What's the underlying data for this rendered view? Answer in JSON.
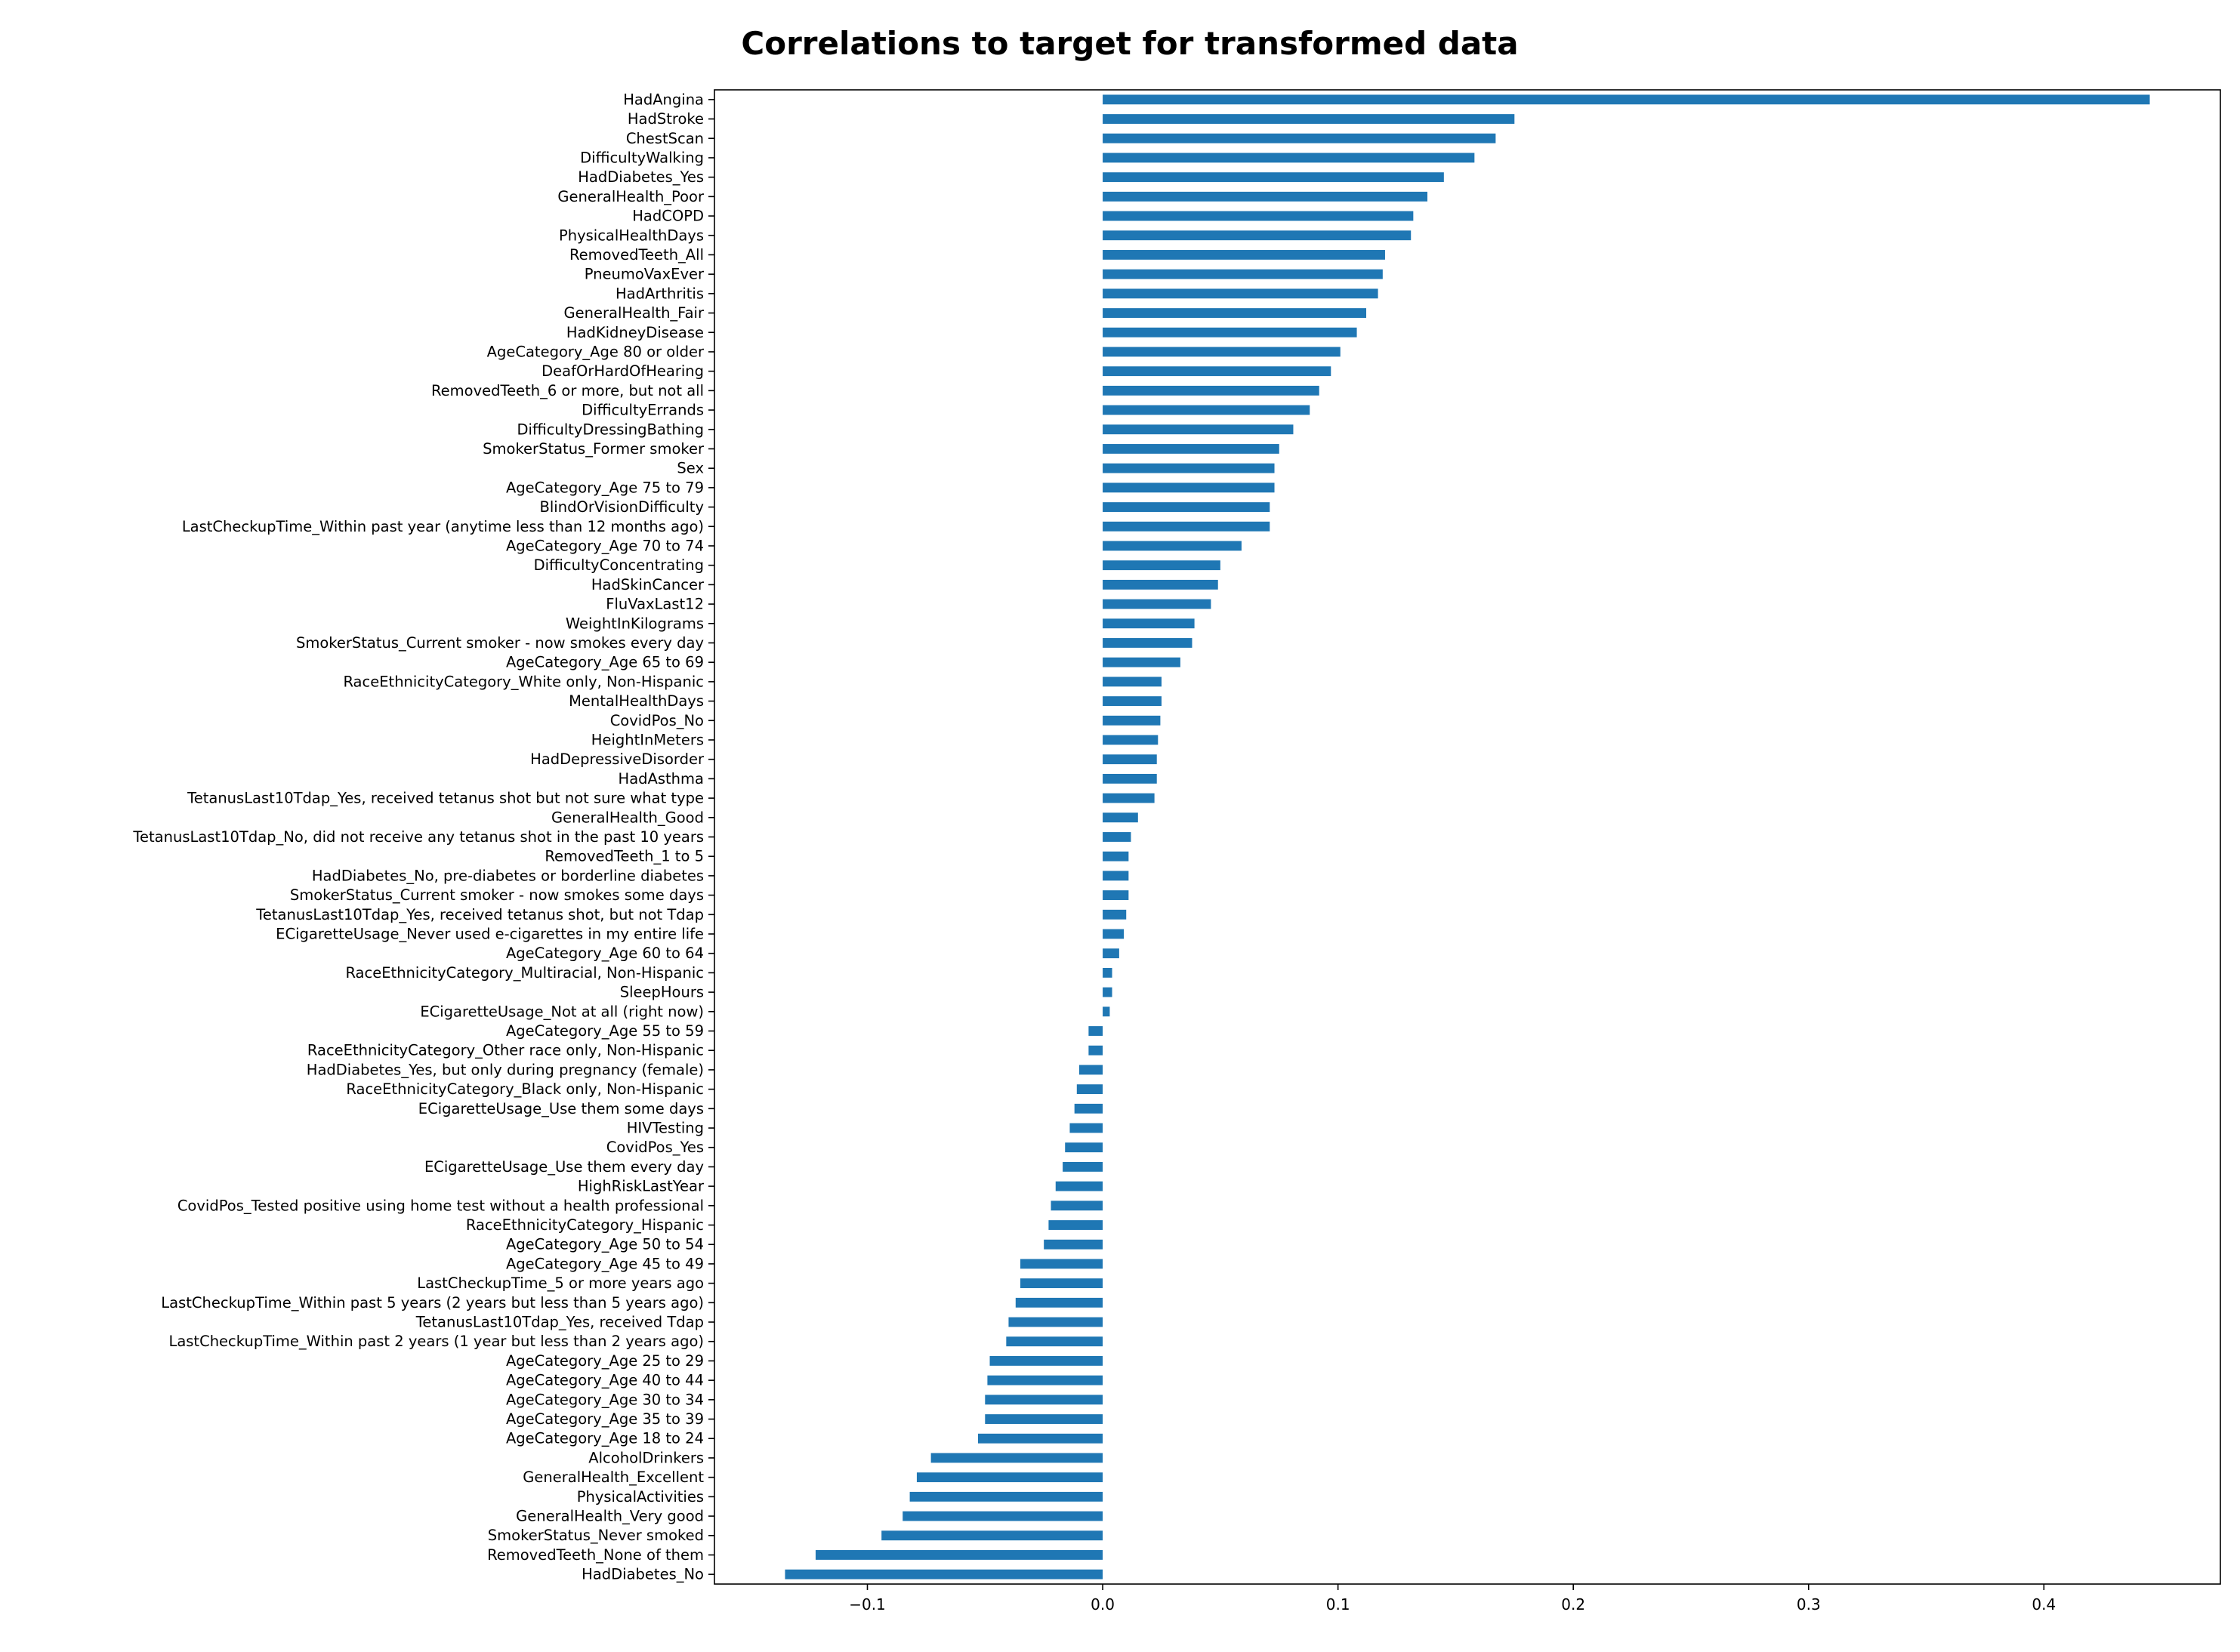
{
  "chart_data": {
    "type": "bar",
    "orientation": "horizontal",
    "title": "Correlations to target for transformed data",
    "xlabel": "",
    "ylabel": "",
    "xlim": [
      -0.165,
      0.475
    ],
    "xticks": [
      -0.1,
      0.0,
      0.1,
      0.2,
      0.3,
      0.4
    ],
    "xtick_labels": [
      "−0.1",
      "0.0",
      "0.1",
      "0.2",
      "0.3",
      "0.4"
    ],
    "grid": false,
    "legend": "none",
    "bar_color": "#1f77b4",
    "categories": [
      "HadAngina",
      "HadStroke",
      "ChestScan",
      "DifficultyWalking",
      "HadDiabetes_Yes",
      "GeneralHealth_Poor",
      "HadCOPD",
      "PhysicalHealthDays",
      "RemovedTeeth_All",
      "PneumoVaxEver",
      "HadArthritis",
      "GeneralHealth_Fair",
      "HadKidneyDisease",
      "AgeCategory_Age 80 or older",
      "DeafOrHardOfHearing",
      "RemovedTeeth_6 or more, but not all",
      "DifficultyErrands",
      "DifficultyDressingBathing",
      "SmokerStatus_Former smoker",
      "Sex",
      "AgeCategory_Age 75 to 79",
      "BlindOrVisionDifficulty",
      "LastCheckupTime_Within past year (anytime less than 12 months ago)",
      "AgeCategory_Age 70 to 74",
      "DifficultyConcentrating",
      "HadSkinCancer",
      "FluVaxLast12",
      "WeightInKilograms",
      "SmokerStatus_Current smoker - now smokes every day",
      "AgeCategory_Age 65 to 69",
      "RaceEthnicityCategory_White only, Non-Hispanic",
      "MentalHealthDays",
      "CovidPos_No",
      "HeightInMeters",
      "HadDepressiveDisorder",
      "HadAsthma",
      "TetanusLast10Tdap_Yes, received tetanus shot but not sure what type",
      "GeneralHealth_Good",
      "TetanusLast10Tdap_No, did not receive any tetanus shot in the past 10 years",
      "RemovedTeeth_1 to 5",
      "HadDiabetes_No, pre-diabetes or borderline diabetes",
      "SmokerStatus_Current smoker - now smokes some days",
      "TetanusLast10Tdap_Yes, received tetanus shot, but not Tdap",
      "ECigaretteUsage_Never used e-cigarettes in my entire life",
      "AgeCategory_Age 60 to 64",
      "RaceEthnicityCategory_Multiracial, Non-Hispanic",
      "SleepHours",
      "ECigaretteUsage_Not at all (right now)",
      "AgeCategory_Age 55 to 59",
      "RaceEthnicityCategory_Other race only, Non-Hispanic",
      "HadDiabetes_Yes, but only during pregnancy (female)",
      "RaceEthnicityCategory_Black only, Non-Hispanic",
      "ECigaretteUsage_Use them some days",
      "HIVTesting",
      "CovidPos_Yes",
      "ECigaretteUsage_Use them every day",
      "HighRiskLastYear",
      "CovidPos_Tested positive using home test without a health professional",
      "RaceEthnicityCategory_Hispanic",
      "AgeCategory_Age 50 to 54",
      "AgeCategory_Age 45 to 49",
      "LastCheckupTime_5 or more years ago",
      "LastCheckupTime_Within past 5 years (2 years but less than 5 years ago)",
      "TetanusLast10Tdap_Yes, received Tdap",
      "LastCheckupTime_Within past 2 years (1 year but less than 2 years ago)",
      "AgeCategory_Age 25 to 29",
      "AgeCategory_Age 40 to 44",
      "AgeCategory_Age 30 to 34",
      "AgeCategory_Age 35 to 39",
      "AgeCategory_Age 18 to 24",
      "AlcoholDrinkers",
      "GeneralHealth_Excellent",
      "PhysicalActivities",
      "GeneralHealth_Very good",
      "SmokerStatus_Never smoked",
      "RemovedTeeth_None of them",
      "HadDiabetes_No"
    ],
    "values": [
      0.445,
      0.175,
      0.167,
      0.158,
      0.145,
      0.138,
      0.132,
      0.131,
      0.12,
      0.119,
      0.117,
      0.112,
      0.108,
      0.101,
      0.097,
      0.092,
      0.088,
      0.081,
      0.075,
      0.073,
      0.073,
      0.071,
      0.071,
      0.059,
      0.05,
      0.049,
      0.046,
      0.039,
      0.038,
      0.033,
      0.025,
      0.025,
      0.0245,
      0.0235,
      0.023,
      0.023,
      0.022,
      0.015,
      0.012,
      0.011,
      0.011,
      0.011,
      0.01,
      0.009,
      0.007,
      0.004,
      0.004,
      0.003,
      -0.006,
      -0.006,
      -0.01,
      -0.011,
      -0.012,
      -0.014,
      -0.016,
      -0.017,
      -0.02,
      -0.022,
      -0.023,
      -0.025,
      -0.035,
      -0.035,
      -0.037,
      -0.04,
      -0.041,
      -0.048,
      -0.049,
      -0.05,
      -0.05,
      -0.053,
      -0.073,
      -0.079,
      -0.082,
      -0.085,
      -0.094,
      -0.122,
      -0.135
    ]
  }
}
